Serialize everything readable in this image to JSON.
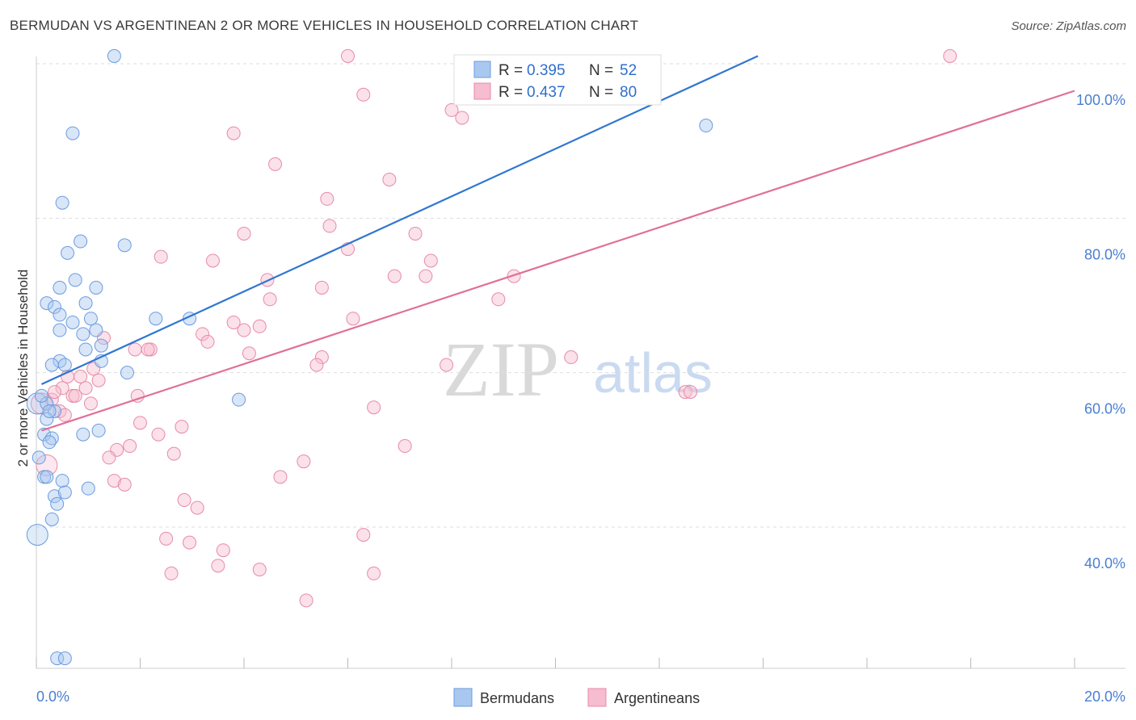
{
  "title": "BERMUDAN VS ARGENTINEAN 2 OR MORE VEHICLES IN HOUSEHOLD CORRELATION CHART",
  "source": "Source: ZipAtlas.com",
  "watermark": {
    "zip": "ZIP",
    "atlas": "atlas"
  },
  "colors": {
    "blue_fill": "#a9c8ef",
    "blue_stroke": "#6b9be0",
    "blue_line": "#2f76d2",
    "pink_fill": "#f6bccf",
    "pink_stroke": "#e88aa8",
    "pink_line": "#e0709a",
    "tick_text": "#4a7fd0",
    "grid": "#dddddd"
  },
  "legend": {
    "r_label": "R =",
    "n_label": "N =",
    "entries": [
      {
        "name": "Bermudans",
        "r": "0.395",
        "n": "52"
      },
      {
        "name": "Argentineans",
        "r": "0.437",
        "n": "80"
      }
    ]
  },
  "chart_data": {
    "type": "scatter",
    "title": "BERMUDAN VS ARGENTINEAN 2 OR MORE VEHICLES IN HOUSEHOLD CORRELATION CHART",
    "xlabel": "",
    "ylabel": "2 or more Vehicles in Household",
    "xlim": [
      0,
      20
    ],
    "ylim": [
      20,
      102
    ],
    "x_tick_labels": [
      {
        "value": 0,
        "label": "0.0%"
      },
      {
        "value": 20,
        "label": "20.0%"
      }
    ],
    "y_tick_labels": [
      {
        "value": 40,
        "label": "40.0%"
      },
      {
        "value": 60,
        "label": "60.0%"
      },
      {
        "value": 80,
        "label": "80.0%"
      },
      {
        "value": 100,
        "label": "100.0%"
      }
    ],
    "series": [
      {
        "name": "Bermudans",
        "color": "#a9c8ef",
        "regression": {
          "x0": 0.1,
          "y0": 58.5,
          "x1": 13.9,
          "y1": 101.0
        },
        "points": [
          {
            "x": 0.02,
            "y": 56.0,
            "big": true
          },
          {
            "x": 0.02,
            "y": 39.0,
            "big": true
          },
          {
            "x": 1.5,
            "y": 101.0
          },
          {
            "x": 0.7,
            "y": 91.0
          },
          {
            "x": 0.5,
            "y": 82.0
          },
          {
            "x": 0.85,
            "y": 77.0
          },
          {
            "x": 0.6,
            "y": 75.5
          },
          {
            "x": 1.7,
            "y": 76.5
          },
          {
            "x": 0.75,
            "y": 72.0
          },
          {
            "x": 0.45,
            "y": 71.0
          },
          {
            "x": 1.15,
            "y": 71.0
          },
          {
            "x": 0.2,
            "y": 69.0
          },
          {
            "x": 0.35,
            "y": 68.5
          },
          {
            "x": 0.95,
            "y": 69.0
          },
          {
            "x": 0.45,
            "y": 67.5
          },
          {
            "x": 1.05,
            "y": 67.0
          },
          {
            "x": 0.7,
            "y": 66.5
          },
          {
            "x": 2.3,
            "y": 67.0
          },
          {
            "x": 2.95,
            "y": 67.0
          },
          {
            "x": 0.45,
            "y": 65.5
          },
          {
            "x": 0.9,
            "y": 65.0
          },
          {
            "x": 1.15,
            "y": 65.5
          },
          {
            "x": 1.25,
            "y": 63.5
          },
          {
            "x": 0.95,
            "y": 63.0
          },
          {
            "x": 0.45,
            "y": 61.5
          },
          {
            "x": 0.55,
            "y": 61.0
          },
          {
            "x": 0.3,
            "y": 61.0
          },
          {
            "x": 1.25,
            "y": 61.5
          },
          {
            "x": 1.75,
            "y": 60.0
          },
          {
            "x": 3.9,
            "y": 56.5
          },
          {
            "x": 0.2,
            "y": 56.0
          },
          {
            "x": 0.35,
            "y": 55.0
          },
          {
            "x": 0.2,
            "y": 54.0
          },
          {
            "x": 0.15,
            "y": 52.0
          },
          {
            "x": 0.3,
            "y": 51.5
          },
          {
            "x": 0.25,
            "y": 51.0
          },
          {
            "x": 0.9,
            "y": 52.0
          },
          {
            "x": 1.2,
            "y": 52.5
          },
          {
            "x": 0.05,
            "y": 49.0
          },
          {
            "x": 0.15,
            "y": 46.5
          },
          {
            "x": 0.2,
            "y": 46.5
          },
          {
            "x": 0.5,
            "y": 46.0
          },
          {
            "x": 0.35,
            "y": 44.0
          },
          {
            "x": 0.55,
            "y": 44.5
          },
          {
            "x": 1.0,
            "y": 45.0
          },
          {
            "x": 0.4,
            "y": 43.0
          },
          {
            "x": 0.3,
            "y": 41.0
          },
          {
            "x": 12.9,
            "y": 92.0
          },
          {
            "x": 0.4,
            "y": 23.0
          },
          {
            "x": 0.55,
            "y": 23.0
          },
          {
            "x": 0.1,
            "y": 57.0
          },
          {
            "x": 0.25,
            "y": 55.0
          }
        ]
      },
      {
        "name": "Argentineans",
        "color": "#f6bccf",
        "regression": {
          "x0": 0.1,
          "y0": 52.5,
          "x1": 20.0,
          "y1": 96.5
        },
        "points": [
          {
            "x": 0.1,
            "y": 56.0,
            "big": true
          },
          {
            "x": 0.2,
            "y": 48.0,
            "big": true
          },
          {
            "x": 6.0,
            "y": 101.0
          },
          {
            "x": 17.6,
            "y": 101.0
          },
          {
            "x": 6.3,
            "y": 96.0
          },
          {
            "x": 8.0,
            "y": 94.0
          },
          {
            "x": 8.2,
            "y": 93.0
          },
          {
            "x": 3.8,
            "y": 91.0
          },
          {
            "x": 4.6,
            "y": 87.0
          },
          {
            "x": 6.8,
            "y": 85.0
          },
          {
            "x": 5.6,
            "y": 82.5
          },
          {
            "x": 5.65,
            "y": 79.0
          },
          {
            "x": 4.0,
            "y": 78.0
          },
          {
            "x": 7.3,
            "y": 78.0
          },
          {
            "x": 6.0,
            "y": 76.0
          },
          {
            "x": 2.4,
            "y": 75.0
          },
          {
            "x": 3.4,
            "y": 74.5
          },
          {
            "x": 7.6,
            "y": 74.5
          },
          {
            "x": 9.2,
            "y": 72.5
          },
          {
            "x": 4.45,
            "y": 72.0
          },
          {
            "x": 6.9,
            "y": 72.5
          },
          {
            "x": 7.5,
            "y": 72.5
          },
          {
            "x": 5.5,
            "y": 71.0
          },
          {
            "x": 4.5,
            "y": 69.5
          },
          {
            "x": 8.9,
            "y": 69.5
          },
          {
            "x": 6.1,
            "y": 67.0
          },
          {
            "x": 3.8,
            "y": 66.5
          },
          {
            "x": 4.0,
            "y": 65.5
          },
          {
            "x": 4.3,
            "y": 66.0
          },
          {
            "x": 3.2,
            "y": 65.0
          },
          {
            "x": 3.3,
            "y": 64.0
          },
          {
            "x": 1.3,
            "y": 64.5
          },
          {
            "x": 2.2,
            "y": 63.0
          },
          {
            "x": 4.1,
            "y": 62.5
          },
          {
            "x": 1.9,
            "y": 63.0
          },
          {
            "x": 2.15,
            "y": 63.0
          },
          {
            "x": 5.5,
            "y": 62.0
          },
          {
            "x": 10.3,
            "y": 62.0
          },
          {
            "x": 5.4,
            "y": 61.0
          },
          {
            "x": 7.9,
            "y": 61.0
          },
          {
            "x": 1.2,
            "y": 59.0
          },
          {
            "x": 0.6,
            "y": 59.5
          },
          {
            "x": 0.85,
            "y": 59.5
          },
          {
            "x": 0.95,
            "y": 58.0
          },
          {
            "x": 0.5,
            "y": 58.0
          },
          {
            "x": 0.7,
            "y": 57.0
          },
          {
            "x": 1.95,
            "y": 57.0
          },
          {
            "x": 12.5,
            "y": 57.5
          },
          {
            "x": 12.6,
            "y": 57.5
          },
          {
            "x": 1.05,
            "y": 56.0
          },
          {
            "x": 0.45,
            "y": 55.0
          },
          {
            "x": 6.5,
            "y": 55.5
          },
          {
            "x": 2.0,
            "y": 53.5
          },
          {
            "x": 2.8,
            "y": 53.0
          },
          {
            "x": 2.35,
            "y": 52.0
          },
          {
            "x": 1.8,
            "y": 50.5
          },
          {
            "x": 1.55,
            "y": 50.0
          },
          {
            "x": 7.1,
            "y": 50.5
          },
          {
            "x": 2.65,
            "y": 49.5
          },
          {
            "x": 1.4,
            "y": 49.0
          },
          {
            "x": 5.15,
            "y": 48.5
          },
          {
            "x": 4.7,
            "y": 46.5
          },
          {
            "x": 1.5,
            "y": 46.0
          },
          {
            "x": 1.7,
            "y": 45.5
          },
          {
            "x": 2.85,
            "y": 43.5
          },
          {
            "x": 3.1,
            "y": 42.5
          },
          {
            "x": 6.3,
            "y": 39.0
          },
          {
            "x": 2.5,
            "y": 38.5
          },
          {
            "x": 2.95,
            "y": 38.0
          },
          {
            "x": 3.6,
            "y": 37.0
          },
          {
            "x": 3.5,
            "y": 35.0
          },
          {
            "x": 2.6,
            "y": 34.0
          },
          {
            "x": 4.3,
            "y": 34.5
          },
          {
            "x": 6.5,
            "y": 34.0
          },
          {
            "x": 5.2,
            "y": 30.5
          },
          {
            "x": 0.3,
            "y": 56.5
          },
          {
            "x": 0.55,
            "y": 54.5
          },
          {
            "x": 0.75,
            "y": 57.0
          },
          {
            "x": 0.35,
            "y": 57.5
          },
          {
            "x": 1.1,
            "y": 60.5
          }
        ]
      }
    ]
  }
}
